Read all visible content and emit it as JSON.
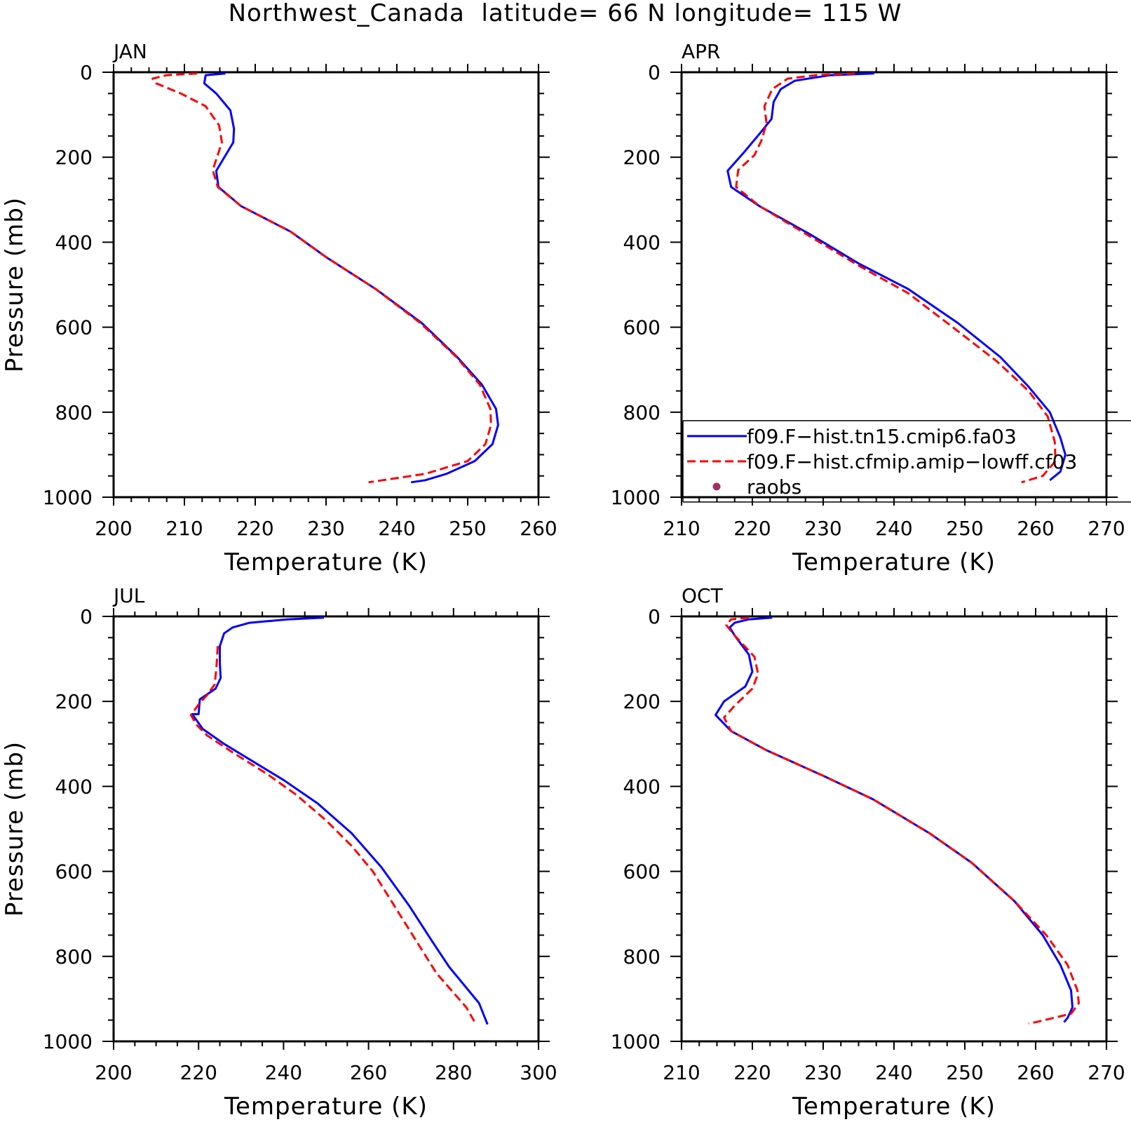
{
  "figure": {
    "title": "Northwest_Canada  latitude= 66 N longitude= 115 W"
  },
  "chart_data": [
    {
      "type": "line",
      "title": "JAN",
      "xlabel": "Temperature (K)",
      "ylabel": "Pressure (mb)",
      "xlim": [
        200,
        260
      ],
      "ylim": [
        1000,
        0
      ],
      "xticks": [
        200,
        210,
        220,
        230,
        240,
        250,
        260
      ],
      "yticks": [
        0,
        200,
        400,
        600,
        800,
        1000
      ],
      "grid": false,
      "series": [
        {
          "name": "f09.F−hist.tn15.cmip6.fa03",
          "color": "#0000ff",
          "style": "solid",
          "points": [
            [
              215.8,
              3
            ],
            [
              213,
              7
            ],
            [
              212.8,
              26
            ],
            [
              214.5,
              50
            ],
            [
              216.5,
              90
            ],
            [
              217,
              133
            ],
            [
              216.9,
              165
            ],
            [
              214.5,
              232
            ],
            [
              214.8,
              270
            ],
            [
              218,
              315
            ],
            [
              225,
              375
            ],
            [
              230,
              435
            ],
            [
              237,
              510
            ],
            [
              243.5,
              590
            ],
            [
              248.5,
              670
            ],
            [
              252,
              735
            ],
            [
              254,
              792
            ],
            [
              254.3,
              830
            ],
            [
              253.5,
              875
            ],
            [
              251,
              915
            ],
            [
              247,
              945
            ],
            [
              244,
              960
            ],
            [
              242,
              965
            ]
          ]
        },
        {
          "name": "f09.F−hist.cfmip.amip−lowff.cf03",
          "color": "#ff0000",
          "style": "dashed",
          "points": [
            [
              211.8,
              3
            ],
            [
              207.5,
              7
            ],
            [
              205.5,
              15
            ],
            [
              206,
              26
            ],
            [
              209.5,
              50
            ],
            [
              213,
              80
            ],
            [
              214.9,
              125
            ],
            [
              215.3,
              165
            ],
            [
              214,
              230
            ],
            [
              214.7,
              270
            ],
            [
              218,
              315
            ],
            [
              225,
              375
            ],
            [
              230,
              435
            ],
            [
              237,
              510
            ],
            [
              243.3,
              590
            ],
            [
              248.4,
              670
            ],
            [
              251.7,
              735
            ],
            [
              253.2,
              792
            ],
            [
              253.3,
              830
            ],
            [
              252.5,
              875
            ],
            [
              250,
              915
            ],
            [
              244,
              945
            ],
            [
              238,
              960
            ],
            [
              236,
              965
            ]
          ]
        }
      ]
    },
    {
      "type": "line",
      "title": "APR",
      "xlabel": "Temperature (K)",
      "ylabel": "",
      "xlim": [
        210,
        270
      ],
      "ylim": [
        1000,
        0
      ],
      "xticks": [
        210,
        220,
        230,
        240,
        250,
        260,
        270
      ],
      "yticks": [
        0,
        200,
        400,
        600,
        800,
        1000
      ],
      "grid": false,
      "legend": {
        "position": "lower-right",
        "entries": [
          {
            "label": "f09.F−hist.tn15.cmip6.fa03",
            "color": "#0000ff",
            "style": "solid"
          },
          {
            "label": "f09.F−hist.cfmip.amip−lowff.cf03",
            "color": "#ff0000",
            "style": "dashed"
          },
          {
            "label": "raobs",
            "color": "#a33060",
            "style": "marker"
          }
        ]
      },
      "series": [
        {
          "name": "f09.F−hist.tn15.cmip6.fa03",
          "color": "#0000ff",
          "style": "solid",
          "points": [
            [
              237.2,
              3
            ],
            [
              231,
              7
            ],
            [
              226,
              20
            ],
            [
              224,
              40
            ],
            [
              223,
              70
            ],
            [
              222.7,
              110
            ],
            [
              221,
              145
            ],
            [
              219,
              185
            ],
            [
              216.5,
              232
            ],
            [
              217,
              270
            ],
            [
              221,
              315
            ],
            [
              228,
              380
            ],
            [
              235,
              450
            ],
            [
              242,
              510
            ],
            [
              249,
              590
            ],
            [
              255,
              670
            ],
            [
              259,
              740
            ],
            [
              262,
              800
            ],
            [
              263.5,
              860
            ],
            [
              264.2,
              900
            ],
            [
              263.5,
              940
            ],
            [
              262,
              960
            ]
          ]
        },
        {
          "name": "f09.F−hist.cfmip.amip−lowff.cf03",
          "color": "#ff0000",
          "style": "dashed",
          "points": [
            [
              234.5,
              3
            ],
            [
              229,
              7
            ],
            [
              225,
              15
            ],
            [
              222.8,
              40
            ],
            [
              221.7,
              80
            ],
            [
              222,
              120
            ],
            [
              221.3,
              160
            ],
            [
              220.3,
              195
            ],
            [
              218,
              230
            ],
            [
              217.7,
              270
            ],
            [
              221,
              315
            ],
            [
              228,
              385
            ],
            [
              235,
              455
            ],
            [
              242,
              520
            ],
            [
              248.3,
              600
            ],
            [
              254.5,
              680
            ],
            [
              259,
              750
            ],
            [
              261.7,
              810
            ],
            [
              262.7,
              870
            ],
            [
              262.8,
              915
            ],
            [
              261,
              950
            ],
            [
              258,
              965
            ]
          ]
        }
      ]
    },
    {
      "type": "line",
      "title": "JUL",
      "xlabel": "Temperature (K)",
      "ylabel": "Pressure (mb)",
      "xlim": [
        200,
        300
      ],
      "ylim": [
        1000,
        0
      ],
      "xticks": [
        200,
        220,
        240,
        260,
        280,
        300
      ],
      "yticks": [
        0,
        200,
        400,
        600,
        800,
        1000
      ],
      "grid": false,
      "series": [
        {
          "name": "f09.F−hist.tn15.cmip6.fa03",
          "color": "#0000ff",
          "style": "solid",
          "points": [
            [
              249.5,
              3
            ],
            [
              241,
              7
            ],
            [
              232,
              15
            ],
            [
              228,
              26
            ],
            [
              226,
              40
            ],
            [
              225,
              70
            ],
            [
              225,
              110
            ],
            [
              225.2,
              145
            ],
            [
              224,
              170
            ],
            [
              220.3,
              195
            ],
            [
              220,
              230
            ],
            [
              218.5,
              230
            ],
            [
              221,
              265
            ],
            [
              226,
              300
            ],
            [
              240,
              385
            ],
            [
              248,
              440
            ],
            [
              256,
              510
            ],
            [
              263,
              590
            ],
            [
              269.5,
              680
            ],
            [
              275,
              765
            ],
            [
              279,
              825
            ],
            [
              286,
              910
            ],
            [
              288,
              960
            ]
          ]
        },
        {
          "name": "f09.F−hist.cfmip.amip−lowff.cf03",
          "color": "#ff0000",
          "style": "dashed",
          "points": [
            [
              224.5,
              70
            ],
            [
              224.2,
              120
            ],
            [
              223.8,
              160
            ],
            [
              222,
              185
            ],
            [
              220.2,
              205
            ],
            [
              218.2,
              232
            ],
            [
              219.5,
              255
            ],
            [
              222,
              280
            ],
            [
              228,
              320
            ],
            [
              236,
              370
            ],
            [
              243,
              420
            ],
            [
              250,
              480
            ],
            [
              256,
              540
            ],
            [
              261,
              600
            ],
            [
              266,
              680
            ],
            [
              271,
              760
            ],
            [
              276,
              840
            ],
            [
              283,
              920
            ],
            [
              285,
              955
            ],
            [
              285,
              960
            ]
          ]
        }
      ]
    },
    {
      "type": "line",
      "title": "OCT",
      "xlabel": "Temperature (K)",
      "ylabel": "",
      "xlim": [
        210,
        270
      ],
      "ylim": [
        1000,
        0
      ],
      "xticks": [
        210,
        220,
        230,
        240,
        250,
        260,
        270
      ],
      "yticks": [
        0,
        200,
        400,
        600,
        800,
        1000
      ],
      "grid": false,
      "series": [
        {
          "name": "f09.F−hist.tn15.cmip6.fa03",
          "color": "#0000ff",
          "style": "solid",
          "points": [
            [
              222.8,
              3
            ],
            [
              219.5,
              7
            ],
            [
              217.5,
              15
            ],
            [
              216.8,
              26
            ],
            [
              217.5,
              45
            ],
            [
              219.5,
              90
            ],
            [
              220,
              130
            ],
            [
              219,
              165
            ],
            [
              216,
              200
            ],
            [
              214.8,
              232
            ],
            [
              217,
              270
            ],
            [
              222,
              315
            ],
            [
              230,
              375
            ],
            [
              237,
              430
            ],
            [
              245,
              510
            ],
            [
              251,
              580
            ],
            [
              257,
              670
            ],
            [
              261,
              750
            ],
            [
              263.5,
              820
            ],
            [
              265,
              880
            ],
            [
              265.2,
              920
            ],
            [
              264.5,
              945
            ],
            [
              264,
              955
            ]
          ]
        },
        {
          "name": "f09.F−hist.cfmip.amip−lowff.cf03",
          "color": "#ff0000",
          "style": "dashed",
          "points": [
            [
              219.5,
              3
            ],
            [
              217,
              7
            ],
            [
              216.3,
              20
            ],
            [
              217.5,
              45
            ],
            [
              220.3,
              95
            ],
            [
              220.8,
              135
            ],
            [
              220,
              170
            ],
            [
              217.5,
              210
            ],
            [
              216,
              238
            ],
            [
              217,
              270
            ],
            [
              222,
              315
            ],
            [
              230,
              375
            ],
            [
              237,
              430
            ],
            [
              245,
              510
            ],
            [
              251,
              580
            ],
            [
              257,
              670
            ],
            [
              261.5,
              750
            ],
            [
              264.5,
              820
            ],
            [
              265.9,
              880
            ],
            [
              266.1,
              910
            ],
            [
              265,
              935
            ],
            [
              260,
              955
            ],
            [
              259,
              958
            ]
          ]
        }
      ]
    }
  ]
}
